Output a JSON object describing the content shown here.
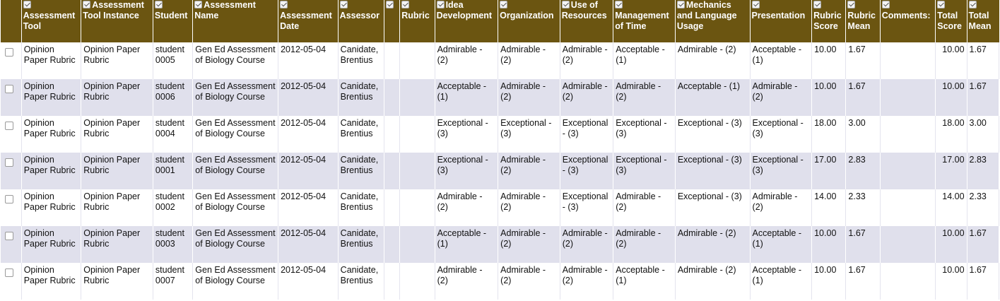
{
  "columns": [
    {
      "key": "select",
      "label": ""
    },
    {
      "key": "tool",
      "label": "Assessment Tool"
    },
    {
      "key": "instance",
      "label": "Assessment Tool Instance"
    },
    {
      "key": "student",
      "label": "Student"
    },
    {
      "key": "name",
      "label": "Assessment Name"
    },
    {
      "key": "date",
      "label": "Assessment Date"
    },
    {
      "key": "assessor",
      "label": "Assessor"
    },
    {
      "key": "blank",
      "label": ""
    },
    {
      "key": "rubric",
      "label": "Rubric"
    },
    {
      "key": "idea",
      "label": "Idea Development"
    },
    {
      "key": "organization",
      "label": "Organization"
    },
    {
      "key": "resources",
      "label": "Use of Resources"
    },
    {
      "key": "time",
      "label": "Management of Time"
    },
    {
      "key": "mechanics",
      "label": "Mechanics and Language Usage"
    },
    {
      "key": "presentation",
      "label": "Presentation"
    },
    {
      "key": "rscore",
      "label": "Rubric Score"
    },
    {
      "key": "rmean",
      "label": "Rubric Mean"
    },
    {
      "key": "comments",
      "label": "Comments:"
    },
    {
      "key": "tscore",
      "label": "Total Score"
    },
    {
      "key": "tmean",
      "label": "Total Mean"
    }
  ],
  "rows": [
    {
      "tool": "Opinion Paper Rubric",
      "instance": "Opinion Paper Rubric",
      "student": "student 0005",
      "name": "Gen Ed Assessment of Biology Course",
      "date": "2012-05-04",
      "assessor": "Canidate, Brentius",
      "blank": "",
      "rubric": "",
      "idea": "Admirable - (2)",
      "organization": "Admirable - (2)",
      "resources": "Admirable - (2)",
      "time": "Acceptable - (1)",
      "mechanics": "Admirable - (2)",
      "presentation": "Acceptable - (1)",
      "rscore": "10.00",
      "rmean": "1.67",
      "comments": "",
      "tscore": "10.00",
      "tmean": "1.67"
    },
    {
      "tool": "Opinion Paper Rubric",
      "instance": "Opinion Paper Rubric",
      "student": "student 0006",
      "name": "Gen Ed Assessment of Biology Course",
      "date": "2012-05-04",
      "assessor": "Canidate, Brentius",
      "blank": "",
      "rubric": "",
      "idea": "Acceptable - (1)",
      "organization": "Admirable - (2)",
      "resources": "Admirable - (2)",
      "time": "Admirable - (2)",
      "mechanics": "Acceptable - (1)",
      "presentation": "Admirable - (2)",
      "rscore": "10.00",
      "rmean": "1.67",
      "comments": "",
      "tscore": "10.00",
      "tmean": "1.67"
    },
    {
      "tool": "Opinion Paper Rubric",
      "instance": "Opinion Paper Rubric",
      "student": "student 0004",
      "name": "Gen Ed Assessment of Biology Course",
      "date": "2012-05-04",
      "assessor": "Canidate, Brentius",
      "blank": "",
      "rubric": "",
      "idea": "Exceptional - (3)",
      "organization": "Exceptional - (3)",
      "resources": "Exceptional - (3)",
      "time": "Exceptional - (3)",
      "mechanics": "Exceptional - (3)",
      "presentation": "Exceptional - (3)",
      "rscore": "18.00",
      "rmean": "3.00",
      "comments": "",
      "tscore": "18.00",
      "tmean": "3.00"
    },
    {
      "tool": "Opinion Paper Rubric",
      "instance": "Opinion Paper Rubric",
      "student": "student 0001",
      "name": "Gen Ed Assessment of Biology Course",
      "date": "2012-05-04",
      "assessor": "Canidate, Brentius",
      "blank": "",
      "rubric": "",
      "idea": "Exceptional - (3)",
      "organization": "Admirable - (2)",
      "resources": "Exceptional - (3)",
      "time": "Exceptional - (3)",
      "mechanics": "Exceptional - (3)",
      "presentation": "Exceptional - (3)",
      "rscore": "17.00",
      "rmean": "2.83",
      "comments": "",
      "tscore": "17.00",
      "tmean": "2.83"
    },
    {
      "tool": "Opinion Paper Rubric",
      "instance": "Opinion Paper Rubric",
      "student": "student 0002",
      "name": "Gen Ed Assessment of Biology Course",
      "date": "2012-05-04",
      "assessor": "Canidate, Brentius",
      "blank": "",
      "rubric": "",
      "idea": "Admirable - (2)",
      "organization": "Admirable - (2)",
      "resources": "Exceptional - (3)",
      "time": "Admirable - (2)",
      "mechanics": "Exceptional - (3)",
      "presentation": "Admirable - (2)",
      "rscore": "14.00",
      "rmean": "2.33",
      "comments": "",
      "tscore": "14.00",
      "tmean": "2.33"
    },
    {
      "tool": "Opinion Paper Rubric",
      "instance": "Opinion Paper Rubric",
      "student": "student 0003",
      "name": "Gen Ed Assessment of Biology Course",
      "date": "2012-05-04",
      "assessor": "Canidate, Brentius",
      "blank": "",
      "rubric": "",
      "idea": "Acceptable - (1)",
      "organization": "Admirable - (2)",
      "resources": "Admirable - (2)",
      "time": "Admirable - (2)",
      "mechanics": "Admirable - (2)",
      "presentation": "Acceptable - (1)",
      "rscore": "10.00",
      "rmean": "1.67",
      "comments": "",
      "tscore": "10.00",
      "tmean": "1.67"
    },
    {
      "tool": "Opinion Paper Rubric",
      "instance": "Opinion Paper Rubric",
      "student": "student 0007",
      "name": "Gen Ed Assessment of Biology Course",
      "date": "2012-05-04",
      "assessor": "Canidate, Brentius",
      "blank": "",
      "rubric": "",
      "idea": "Admirable - (2)",
      "organization": "Admirable - (2)",
      "resources": "Admirable - (2)",
      "time": "Acceptable - (1)",
      "mechanics": "Admirable - (2)",
      "presentation": "Acceptable - (1)",
      "rscore": "10.00",
      "rmean": "1.67",
      "comments": "",
      "tscore": "10.00",
      "tmean": "1.67"
    }
  ]
}
